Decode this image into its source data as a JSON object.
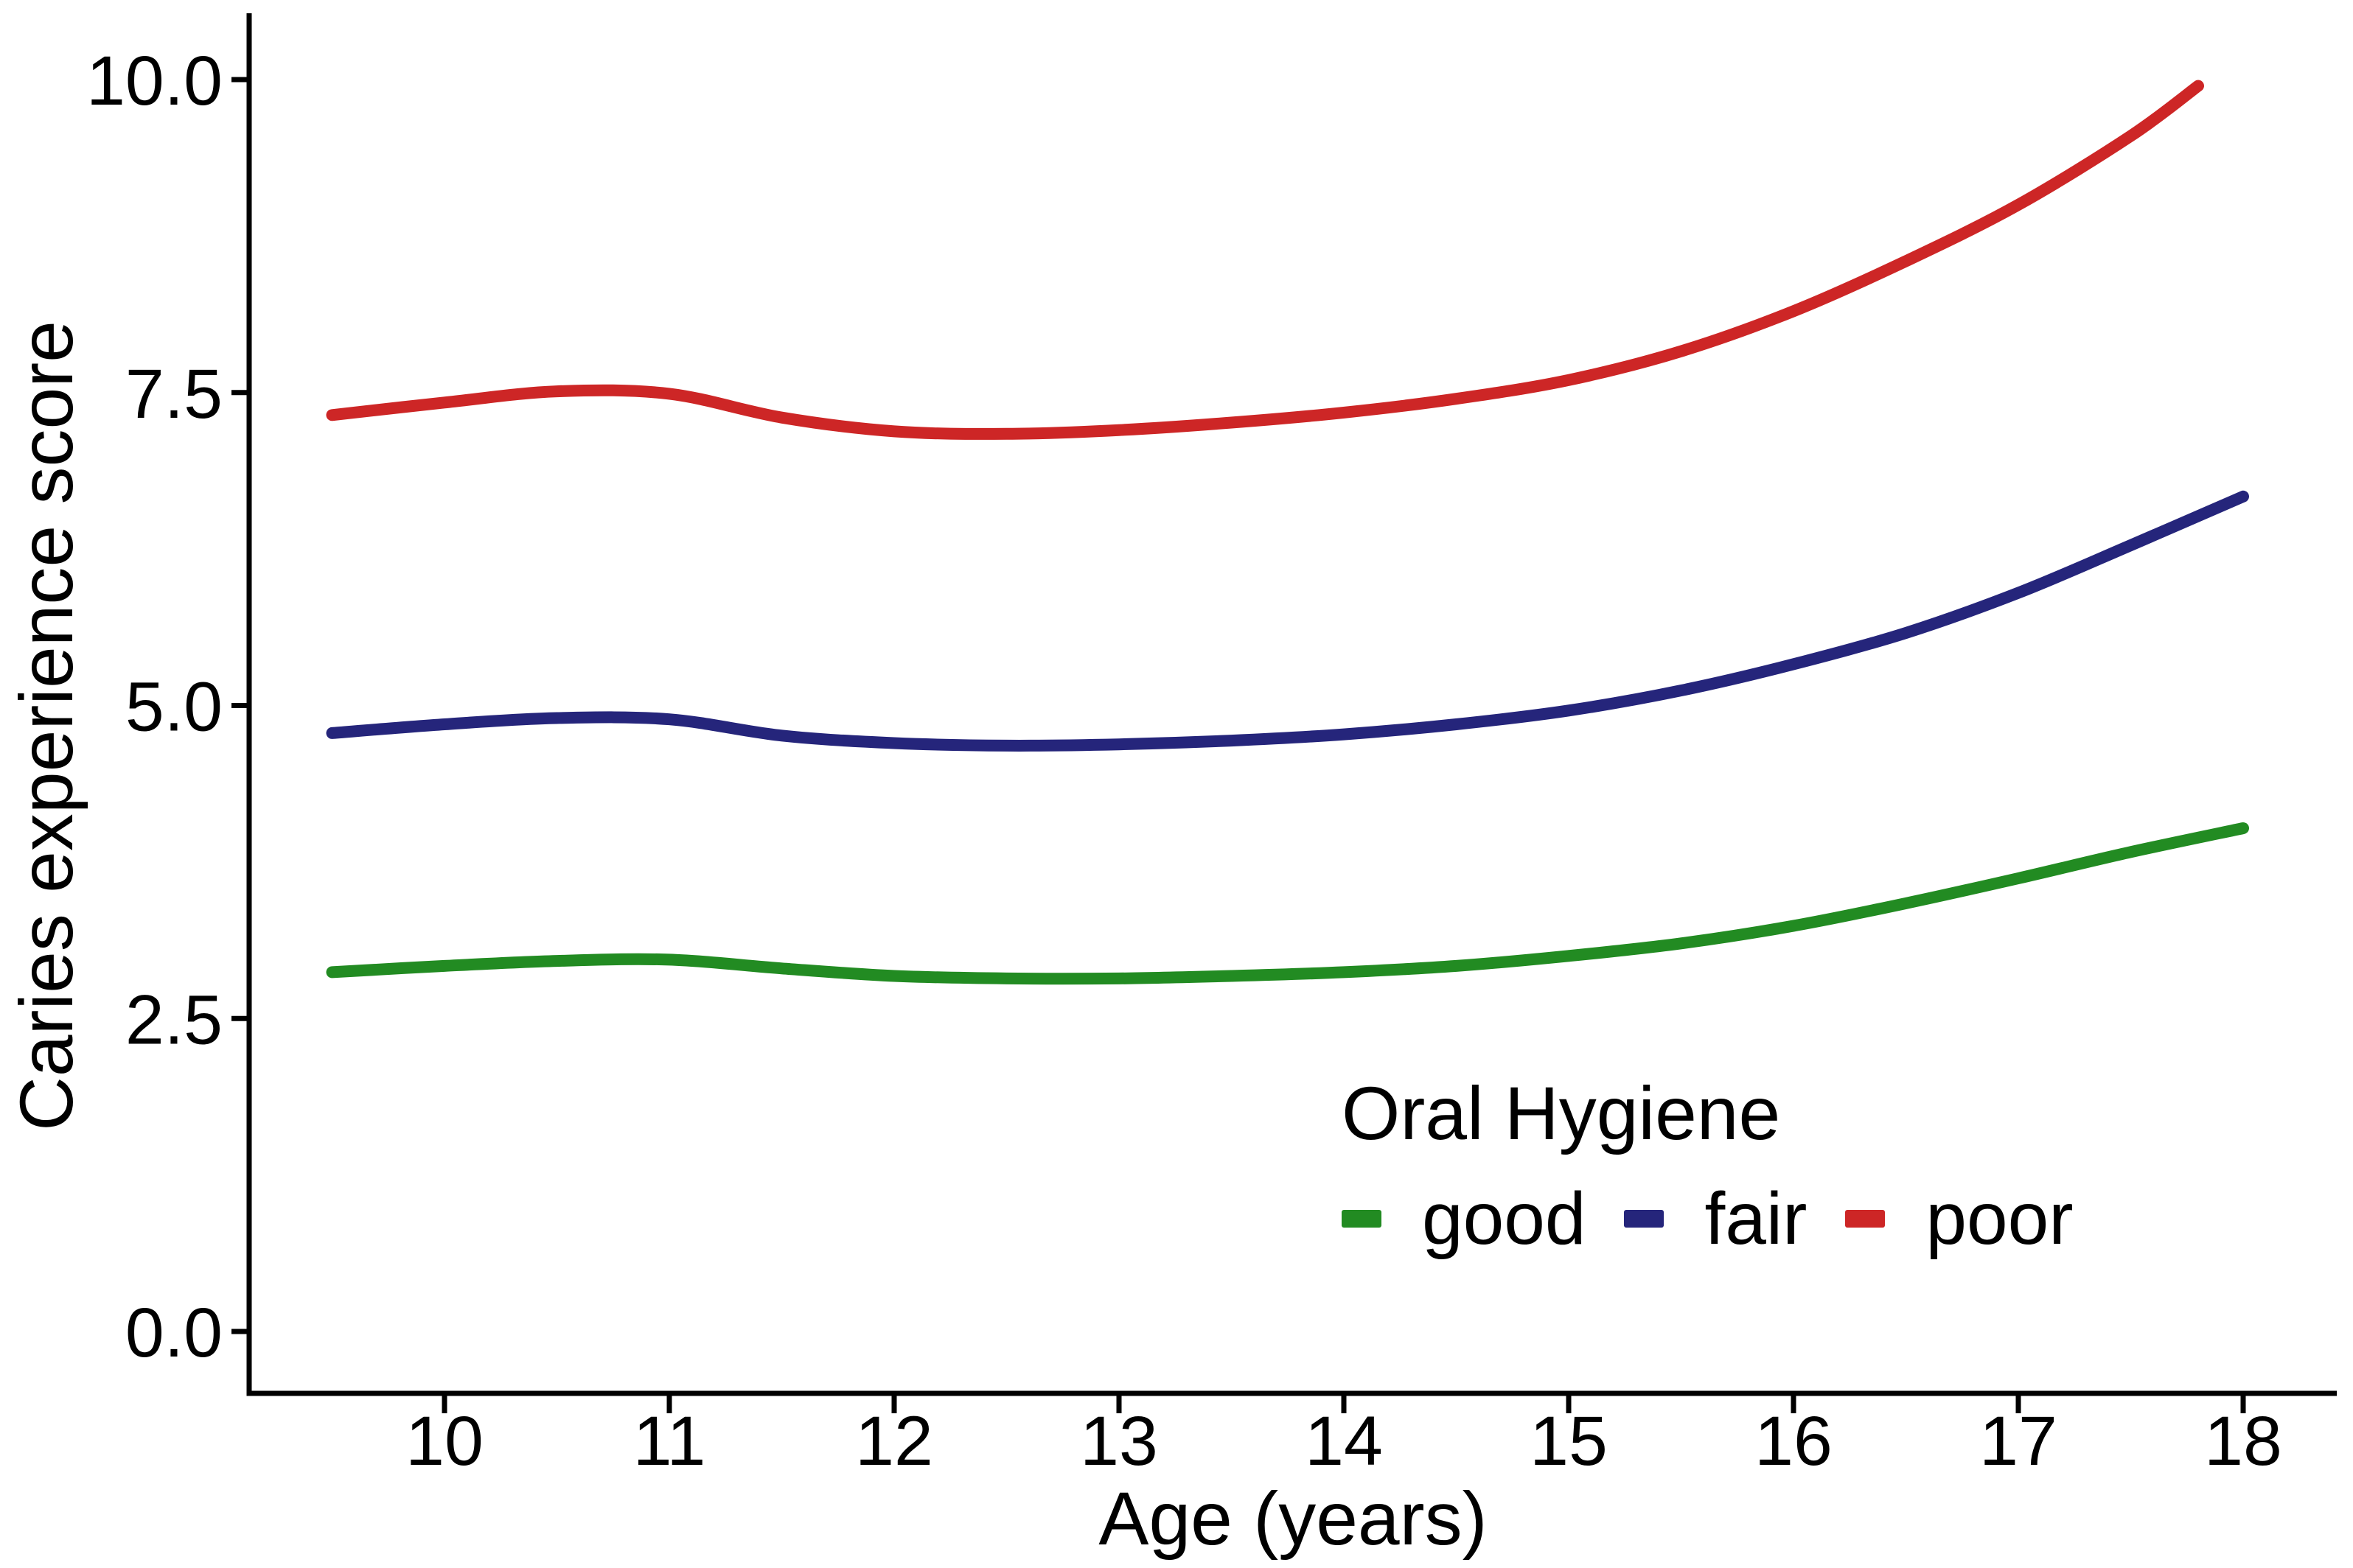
{
  "chart_data": {
    "type": "line",
    "title": "",
    "xlabel": "Age (years)",
    "ylabel": "Caries experience score",
    "legend_title": "Oral Hygiene",
    "legend_position": "inside-bottom-right",
    "grid": false,
    "background": "#ffffff",
    "axis_color": "#000000",
    "xlim": [
      9.3,
      18.4
    ],
    "ylim": [
      0,
      10.4
    ],
    "x_ticks": [
      "10",
      "11",
      "12",
      "13",
      "14",
      "15",
      "16",
      "17",
      "18"
    ],
    "x_tick_values": [
      10,
      11,
      12,
      13,
      14,
      15,
      16,
      17,
      18
    ],
    "y_ticks": [
      "0.0",
      "2.5",
      "5.0",
      "7.5",
      "10.0"
    ],
    "y_tick_values": [
      0,
      2.5,
      5,
      7.5,
      10
    ],
    "series": [
      {
        "name": "good",
        "color": "#228B22",
        "x": [
          9.5,
          10,
          10.5,
          11,
          11.5,
          12,
          12.5,
          13,
          13.5,
          14,
          14.5,
          15,
          15.5,
          16,
          16.5,
          17,
          17.5,
          18
        ],
        "values": [
          2.87,
          2.92,
          2.96,
          2.97,
          2.9,
          2.84,
          2.82,
          2.82,
          2.84,
          2.87,
          2.92,
          3.0,
          3.1,
          3.24,
          3.42,
          3.62,
          3.83,
          4.02
        ]
      },
      {
        "name": "fair",
        "color": "#25257B",
        "x": [
          9.5,
          10,
          10.5,
          11,
          11.5,
          12,
          12.5,
          13,
          13.5,
          14,
          14.5,
          15,
          15.5,
          16,
          16.5,
          17,
          17.5,
          18
        ],
        "values": [
          4.78,
          4.85,
          4.9,
          4.89,
          4.76,
          4.7,
          4.68,
          4.69,
          4.72,
          4.77,
          4.85,
          4.96,
          5.12,
          5.33,
          5.58,
          5.9,
          6.28,
          6.67
        ]
      },
      {
        "name": "poor",
        "color": "#CD2626",
        "x": [
          9.5,
          10,
          10.5,
          11,
          11.5,
          12,
          12.5,
          13,
          13.5,
          14,
          14.5,
          15,
          15.5,
          16,
          16.5,
          17,
          17.5,
          17.8
        ],
        "values": [
          7.32,
          7.42,
          7.51,
          7.49,
          7.3,
          7.19,
          7.17,
          7.2,
          7.26,
          7.34,
          7.45,
          7.6,
          7.83,
          8.15,
          8.55,
          9.0,
          9.55,
          9.95
        ]
      }
    ]
  },
  "legend": {
    "title": "Oral Hygiene",
    "entries": [
      {
        "label": "good",
        "color": "#228B22"
      },
      {
        "label": "fair",
        "color": "#25257B"
      },
      {
        "label": "poor",
        "color": "#CD2626"
      }
    ]
  }
}
